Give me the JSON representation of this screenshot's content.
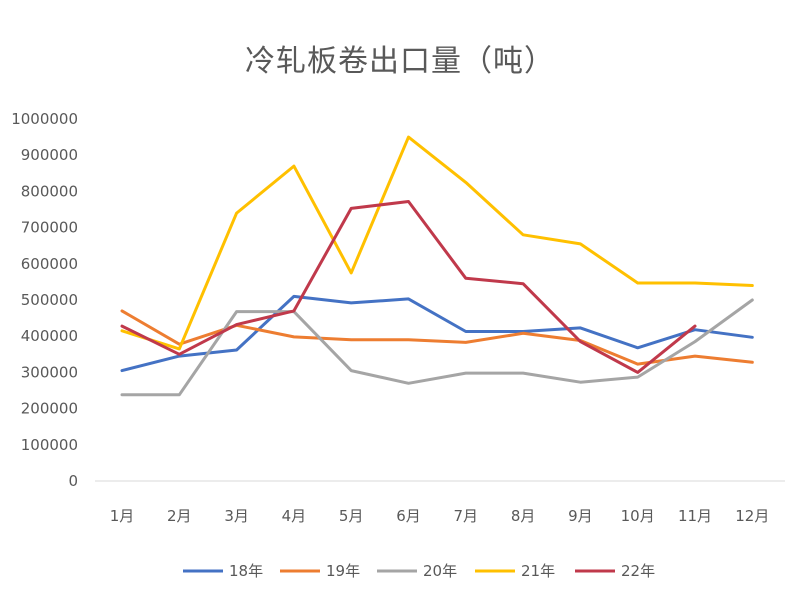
{
  "chart_data": {
    "type": "line",
    "title": "冷轧板卷出口量（吨）",
    "xlabel": "",
    "ylabel": "",
    "categories": [
      "1月",
      "2月",
      "3月",
      "4月",
      "5月",
      "6月",
      "7月",
      "8月",
      "9月",
      "10月",
      "11月",
      "12月"
    ],
    "ylim": [
      0,
      1000000
    ],
    "yticks": [
      0,
      100000,
      200000,
      300000,
      400000,
      500000,
      600000,
      700000,
      800000,
      900000,
      1000000
    ],
    "grid": false,
    "legend_position": "bottom",
    "series": [
      {
        "name": "18年",
        "color": "#4472C4",
        "values": [
          305000,
          345000,
          362000,
          510000,
          492000,
          503000,
          413000,
          413000,
          423000,
          368000,
          418000,
          397000
        ]
      },
      {
        "name": "19年",
        "color": "#ED7D31",
        "values": [
          470000,
          378000,
          430000,
          398000,
          390000,
          390000,
          383000,
          408000,
          388000,
          323000,
          345000,
          328000
        ]
      },
      {
        "name": "20年",
        "color": "#A5A5A5",
        "values": [
          238000,
          238000,
          468000,
          468000,
          305000,
          270000,
          298000,
          298000,
          273000,
          287000,
          385000,
          500000
        ]
      },
      {
        "name": "21年",
        "color": "#FFC000",
        "values": [
          415000,
          365000,
          740000,
          870000,
          575000,
          950000,
          825000,
          680000,
          655000,
          547000,
          547000,
          540000
        ]
      },
      {
        "name": "22年",
        "color": "#C0394B",
        "values": [
          428000,
          350000,
          432000,
          470000,
          753000,
          772000,
          560000,
          545000,
          385000,
          300000,
          428000,
          null
        ]
      }
    ]
  }
}
